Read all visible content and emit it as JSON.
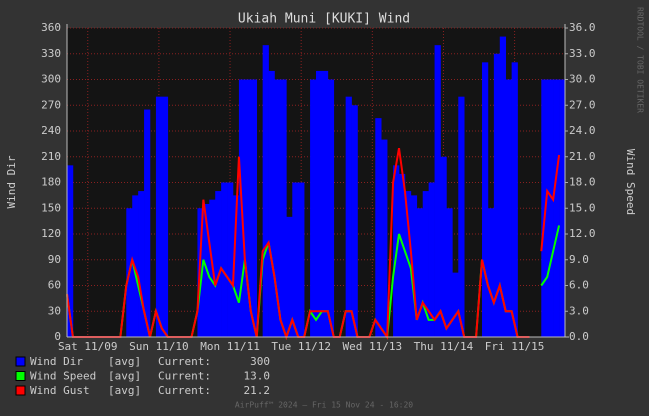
{
  "chart_data": {
    "type": "rrd",
    "title": "Ukiah Muni [KUKI] Wind",
    "y_label": "Wind Dir",
    "y2_label": "Wind Speed",
    "side_text": "RRDTOOL / TOBI OETIKER",
    "footer": "AirPuff™ 2024 – Fri 15 Nov 24 - 16:20",
    "legend_stat": "[avg]",
    "legend_current": "Current:",
    "xlim": [
      0,
      168
    ],
    "xticks": [
      {
        "value": 7,
        "label": "Sat 11/09"
      },
      {
        "value": 31,
        "label": "Sun 11/10"
      },
      {
        "value": 55,
        "label": "Mon 11/11"
      },
      {
        "value": 79,
        "label": "Tue 11/12"
      },
      {
        "value": 103,
        "label": "Wed 11/13"
      },
      {
        "value": 127,
        "label": "Thu 11/14"
      },
      {
        "value": 151,
        "label": "Fri 11/15"
      }
    ],
    "ylim": [
      0,
      360
    ],
    "yticks": [
      0,
      30,
      60,
      90,
      120,
      150,
      180,
      210,
      240,
      270,
      300,
      330,
      360
    ],
    "y2lim": [
      0,
      36
    ],
    "y2ticks": [
      {
        "value": 0,
        "label": "0.0"
      },
      {
        "value": 3,
        "label": "3.0"
      },
      {
        "value": 6,
        "label": "6.0"
      },
      {
        "value": 9,
        "label": "9.0"
      },
      {
        "value": 12,
        "label": "12.0"
      },
      {
        "value": 15,
        "label": "15.0"
      },
      {
        "value": 18,
        "label": "18.0"
      },
      {
        "value": 21,
        "label": "21.0"
      },
      {
        "value": 24,
        "label": "24.0"
      },
      {
        "value": 27,
        "label": "27.0"
      },
      {
        "value": 30,
        "label": "30.0"
      },
      {
        "value": 33,
        "label": "33.0"
      },
      {
        "value": 36,
        "label": "36.0"
      }
    ],
    "grid": true,
    "x": [
      0,
      2,
      4,
      6,
      8,
      10,
      12,
      14,
      16,
      18,
      20,
      22,
      24,
      26,
      28,
      30,
      32,
      34,
      36,
      38,
      40,
      42,
      44,
      46,
      48,
      50,
      52,
      54,
      56,
      58,
      60,
      62,
      64,
      66,
      68,
      70,
      72,
      74,
      76,
      78,
      80,
      82,
      84,
      86,
      88,
      90,
      92,
      94,
      96,
      98,
      100,
      102,
      104,
      106,
      108,
      110,
      112,
      114,
      116,
      118,
      120,
      122,
      124,
      126,
      128,
      130,
      132,
      134,
      136,
      138,
      140,
      142,
      144,
      146,
      148,
      150,
      152,
      154,
      156,
      158,
      160,
      162,
      164,
      166
    ],
    "series": [
      {
        "name": "Wind Dir",
        "color": "#0000ff",
        "kind": "area",
        "current": 300,
        "values": [
          200,
          null,
          null,
          null,
          null,
          null,
          null,
          null,
          null,
          null,
          150,
          165,
          170,
          265,
          null,
          280,
          280,
          null,
          null,
          null,
          null,
          null,
          150,
          155,
          160,
          170,
          180,
          180,
          165,
          300,
          300,
          300,
          null,
          340,
          310,
          300,
          300,
          140,
          180,
          180,
          null,
          300,
          310,
          310,
          300,
          null,
          null,
          280,
          270,
          null,
          null,
          null,
          255,
          230,
          null,
          200,
          190,
          170,
          165,
          150,
          170,
          180,
          340,
          210,
          150,
          75,
          280,
          null,
          null,
          null,
          320,
          150,
          330,
          350,
          300,
          320,
          null,
          null,
          null,
          null,
          300,
          300,
          300,
          300
        ]
      },
      {
        "name": "Wind Speed",
        "color": "#00ff00",
        "kind": "line",
        "axis": "y2",
        "current": 13,
        "current_label": "13.0",
        "values": [
          5,
          0,
          0,
          0,
          0,
          0,
          0,
          0,
          0,
          0,
          6,
          9,
          6,
          3,
          0,
          3,
          1,
          0,
          0,
          0,
          0,
          0,
          3,
          9,
          7,
          6,
          8,
          7,
          6,
          4,
          9,
          3,
          0,
          9,
          11,
          7,
          2,
          0,
          2,
          0,
          0,
          3,
          2,
          3,
          3,
          0,
          0,
          3,
          3,
          0,
          0,
          0,
          2,
          1,
          0,
          7,
          12,
          10,
          8,
          2,
          4,
          2,
          2,
          3,
          1,
          2,
          3,
          0,
          0,
          0,
          9,
          6,
          4,
          6,
          3,
          3,
          0,
          0,
          0,
          null,
          6,
          7,
          10,
          13
        ]
      },
      {
        "name": "Wind Gust",
        "color": "#ff0000",
        "kind": "line",
        "axis": "y2",
        "current": 21.2,
        "values": [
          5,
          0,
          0,
          0,
          0,
          0,
          0,
          0,
          0,
          0,
          6,
          9,
          7,
          3,
          0,
          3,
          1,
          0,
          0,
          0,
          0,
          0,
          3,
          16,
          11,
          6,
          8,
          7,
          6,
          21,
          9,
          3,
          0,
          10,
          11,
          7,
          2,
          0,
          2,
          0,
          0,
          3,
          3,
          3,
          3,
          0,
          0,
          3,
          3,
          0,
          0,
          0,
          2,
          1,
          0,
          18,
          22,
          17,
          10,
          2,
          4,
          3,
          2,
          3,
          1,
          2,
          3,
          0,
          0,
          0,
          9,
          6,
          4,
          6,
          3,
          3,
          0,
          0,
          0,
          null,
          10,
          17,
          16,
          21.2
        ]
      }
    ]
  }
}
